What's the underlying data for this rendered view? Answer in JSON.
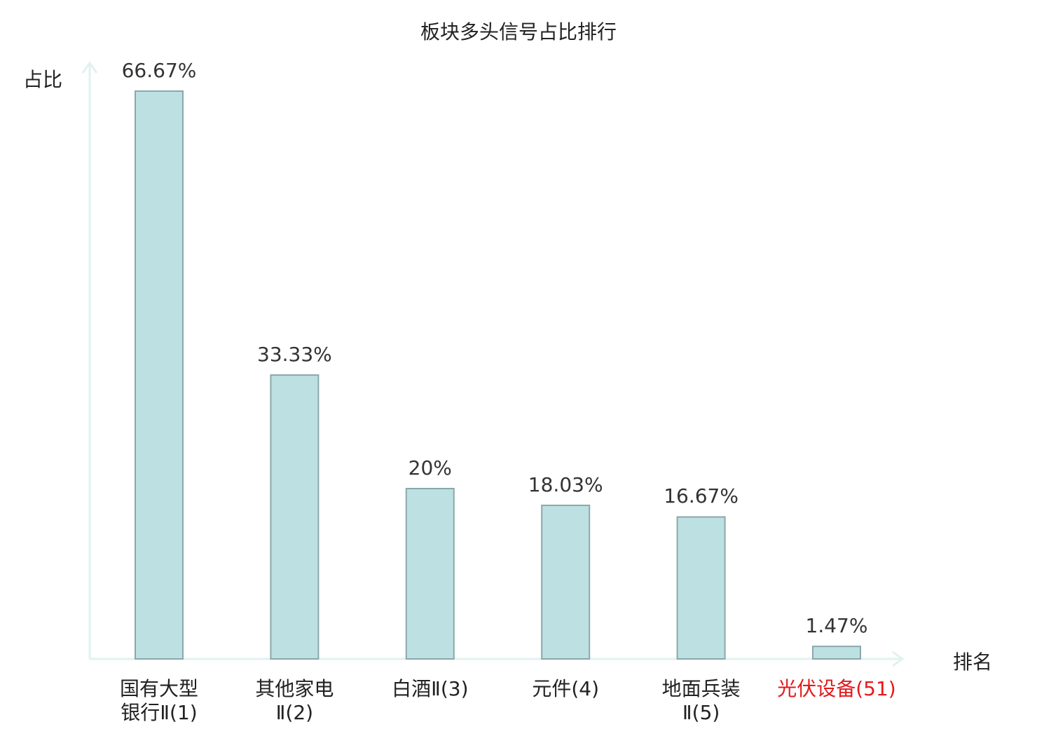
{
  "chart_data": {
    "type": "bar",
    "title": "板块多头信号占比排行",
    "ylabel": "占比",
    "xlabel": "排名",
    "categories": [
      "国有大型\n银行Ⅱ(1)",
      "其他家电\nⅡ(2)",
      "白酒Ⅱ(3)",
      "元件(4)",
      "地面兵装\nⅡ(5)",
      "光伏设备(51)"
    ],
    "values": [
      66.67,
      33.33,
      20,
      18.03,
      16.67,
      1.47
    ],
    "value_labels": [
      "66.67%",
      "33.33%",
      "20%",
      "18.03%",
      "16.67%",
      "1.47%"
    ],
    "highlight_index": 5,
    "ylim": [
      0,
      70
    ],
    "grid": false,
    "legend": "none"
  },
  "colors": {
    "bar_fill": "#bde0e3",
    "bar_stroke": "#8aa8aa",
    "axis": "#e0f2f0",
    "highlight": "#e31a1c"
  }
}
